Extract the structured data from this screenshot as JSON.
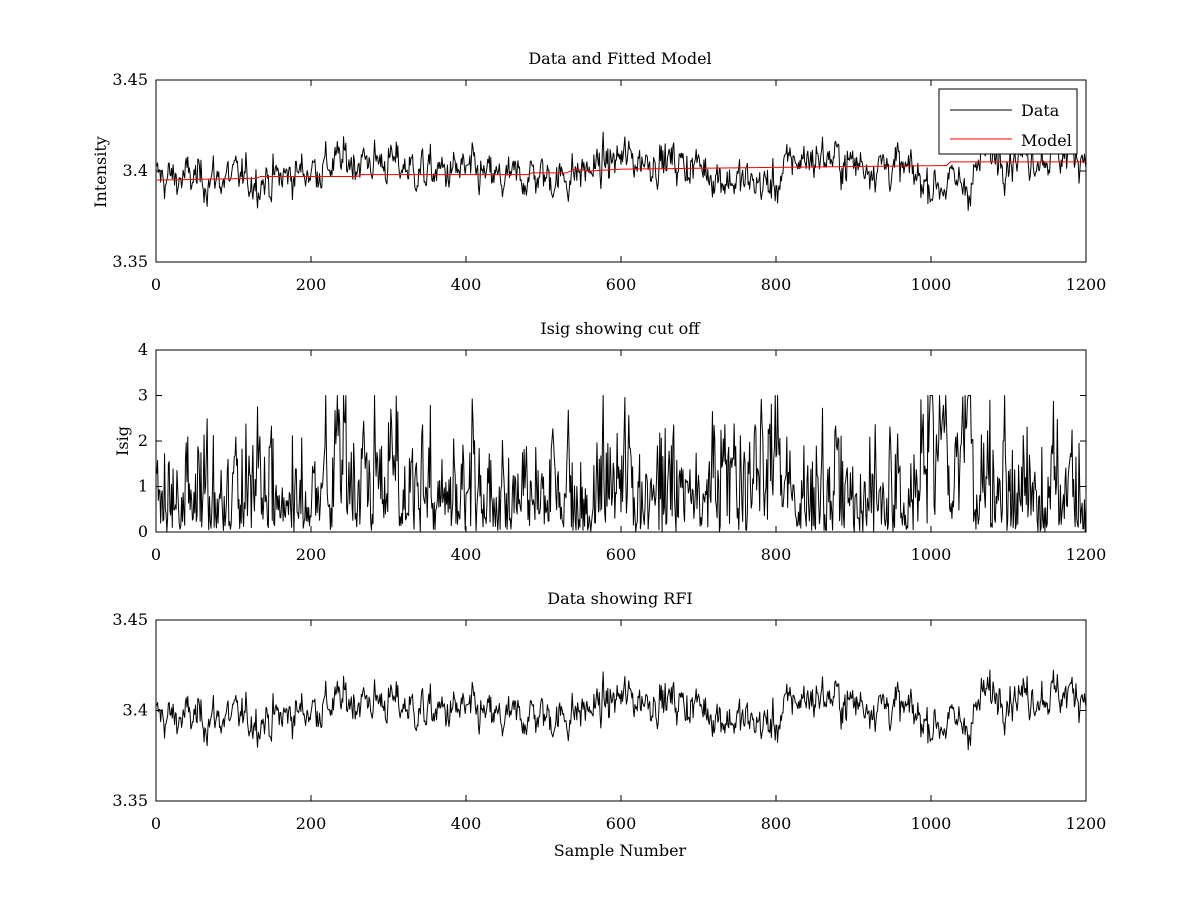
{
  "colors": {
    "data": "#000000",
    "model": "#ff0000"
  },
  "chart_data": [
    {
      "type": "line",
      "title": "Data and Fitted Model",
      "xlabel": "",
      "ylabel": "Intensity",
      "xlim": [
        0,
        1200
      ],
      "ylim": [
        3.35,
        3.45
      ],
      "xticks": [
        0,
        200,
        400,
        600,
        800,
        1000,
        1200
      ],
      "xtick_labels": [
        "0",
        "200",
        "400",
        "600",
        "800",
        "1000",
        "1200"
      ],
      "yticks": [
        3.35,
        3.4,
        3.45
      ],
      "ytick_labels": [
        "3.35",
        "3.4",
        "3.45"
      ],
      "grid": false,
      "legend": {
        "placement": "top-right",
        "entries": [
          "Data",
          "Model"
        ]
      },
      "series": [
        {
          "name": "Data",
          "color": "#000000",
          "x_range": [
            1,
            1200
          ],
          "noise_std": 0.006,
          "baseline": [
            [
              0,
              3.396
            ],
            [
              100,
              3.396
            ],
            [
              150,
              3.395
            ],
            [
              200,
              3.401
            ],
            [
              250,
              3.406
            ],
            [
              300,
              3.405
            ],
            [
              350,
              3.399
            ],
            [
              400,
              3.4
            ],
            [
              450,
              3.394
            ],
            [
              480,
              3.398
            ],
            [
              520,
              3.396
            ],
            [
              560,
              3.401
            ],
            [
              600,
              3.407
            ],
            [
              650,
              3.406
            ],
            [
              700,
              3.403
            ],
            [
              740,
              3.395
            ],
            [
              780,
              3.393
            ],
            [
              800,
              3.392
            ],
            [
              820,
              3.406
            ],
            [
              860,
              3.408
            ],
            [
              900,
              3.404
            ],
            [
              950,
              3.403
            ],
            [
              980,
              3.397
            ],
            [
              1000,
              3.393
            ],
            [
              1050,
              3.393
            ],
            [
              1070,
              3.41
            ],
            [
              1100,
              3.409
            ],
            [
              1150,
              3.409
            ],
            [
              1200,
              3.41
            ]
          ]
        },
        {
          "name": "Model",
          "color": "#ff0000",
          "x": [
            0,
            130,
            135,
            260,
            265,
            480,
            485,
            530,
            540,
            560,
            600,
            800,
            1020,
            1025,
            1200
          ],
          "y": [
            3.395,
            3.396,
            3.397,
            3.397,
            3.398,
            3.398,
            3.399,
            3.399,
            3.401,
            3.4,
            3.401,
            3.402,
            3.403,
            3.405,
            3.405
          ]
        }
      ]
    },
    {
      "type": "line",
      "title": "Isig showing cut off",
      "xlabel": "",
      "ylabel": "Isig",
      "xlim": [
        0,
        1200
      ],
      "ylim": [
        0,
        4
      ],
      "xticks": [
        0,
        200,
        400,
        600,
        800,
        1000,
        1200
      ],
      "xtick_labels": [
        "0",
        "200",
        "400",
        "600",
        "800",
        "1000",
        "1200"
      ],
      "yticks": [
        0,
        1,
        2,
        3,
        4
      ],
      "ytick_labels": [
        "0",
        "1",
        "2",
        "3",
        "4"
      ],
      "grid": false,
      "series": [
        {
          "color": "#000000",
          "x_range": [
            1,
            1200
          ],
          "derived_from": "abs(data - model) / 0.006",
          "ymax_observed": 3.0
        }
      ]
    },
    {
      "type": "line",
      "title": "Data showing RFI",
      "xlabel": "Sample Number",
      "ylabel": "",
      "xlim": [
        0,
        1200
      ],
      "ylim": [
        3.35,
        3.45
      ],
      "xticks": [
        0,
        200,
        400,
        600,
        800,
        1000,
        1200
      ],
      "xtick_labels": [
        "0",
        "200",
        "400",
        "600",
        "800",
        "1000",
        "1200"
      ],
      "yticks": [
        3.35,
        3.4,
        3.45
      ],
      "ytick_labels": [
        "3.35",
        "3.4",
        "3.45"
      ],
      "grid": false,
      "series": [
        {
          "color": "#000000",
          "x_range": [
            1,
            1200
          ],
          "same_as": "Data"
        }
      ]
    }
  ]
}
